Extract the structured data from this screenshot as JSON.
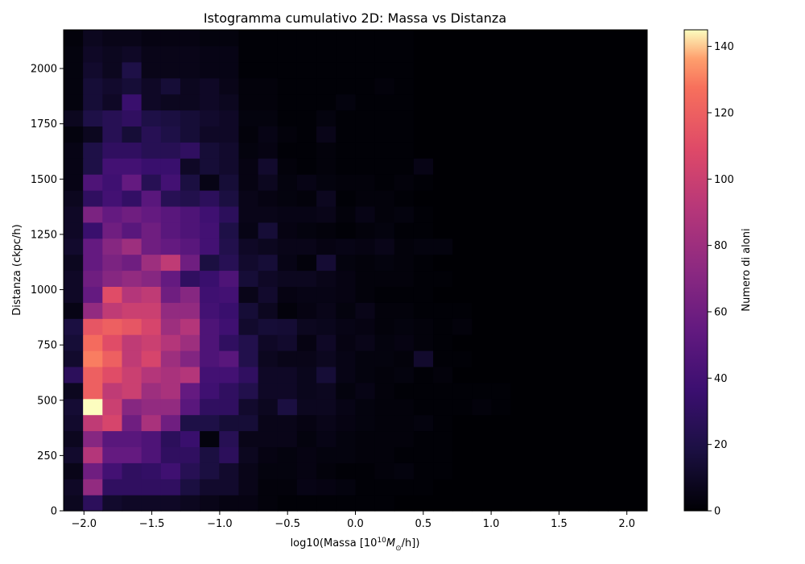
{
  "chart_data": {
    "type": "heatmap",
    "title": "Istogramma cumulativo 2D: Massa vs Distanza",
    "xlabel": "log10(Massa [10",
    "xlabel_exp": "10",
    "xlabel_rest": "M",
    "xlabel_sub": "⊙",
    "xlabel_tail": "/h])",
    "ylabel": "Distanza (ckpc/h)",
    "colorbar_label": "Numero di aloni",
    "colormap": "magma",
    "xlim": [
      -2.15,
      2.15
    ],
    "ylim": [
      0,
      2175
    ],
    "clim": [
      0,
      145
    ],
    "x_ticks": [
      -2.0,
      -1.5,
      -1.0,
      -0.5,
      0.0,
      0.5,
      1.0,
      1.5,
      2.0
    ],
    "x_tick_labels": [
      "−2.0",
      "−1.5",
      "−1.0",
      "−0.5",
      "0.0",
      "0.5",
      "1.0",
      "1.5",
      "2.0"
    ],
    "y_ticks": [
      0,
      250,
      500,
      750,
      1000,
      1250,
      1500,
      1750,
      2000
    ],
    "y_tick_labels": [
      "0",
      "250",
      "500",
      "750",
      "1000",
      "1250",
      "1500",
      "1750",
      "2000"
    ],
    "cbar_ticks": [
      0,
      20,
      40,
      60,
      80,
      100,
      120,
      140
    ],
    "cbar_tick_labels": [
      "0",
      "20",
      "40",
      "60",
      "80",
      "100",
      "120",
      "140"
    ],
    "x_bin_edges_start": -2.15,
    "x_bin_width": 0.1433,
    "y_bin_edges_start": 0,
    "y_bin_width": 72.5,
    "counts_rows_bottom_to_top": [
      [
        8,
        28,
        12,
        10,
        10,
        10,
        8,
        6,
        4,
        4,
        2,
        1,
        1,
        1,
        1,
        1,
        1,
        0,
        0,
        0,
        0,
        0,
        0,
        0,
        0,
        0,
        0,
        0,
        0,
        0
      ],
      [
        10,
        75,
        30,
        30,
        30,
        30,
        18,
        12,
        12,
        6,
        2,
        2,
        5,
        4,
        3,
        1,
        1,
        1,
        1,
        0,
        0,
        0,
        0,
        0,
        0,
        0,
        0,
        0,
        0,
        0
      ],
      [
        6,
        60,
        40,
        30,
        32,
        38,
        25,
        18,
        12,
        6,
        3,
        3,
        4,
        2,
        1,
        1,
        2,
        3,
        1,
        1,
        0,
        0,
        0,
        0,
        0,
        0,
        0,
        0,
        0,
        0
      ],
      [
        12,
        90,
        55,
        55,
        45,
        30,
        30,
        18,
        28,
        8,
        4,
        3,
        4,
        3,
        3,
        2,
        2,
        1,
        1,
        1,
        0,
        0,
        0,
        0,
        0,
        0,
        0,
        0,
        0,
        0
      ],
      [
        8,
        70,
        50,
        50,
        45,
        28,
        35,
        3,
        25,
        6,
        6,
        6,
        3,
        5,
        3,
        2,
        2,
        2,
        1,
        1,
        0,
        0,
        0,
        0,
        0,
        0,
        0,
        0,
        0,
        0
      ],
      [
        12,
        95,
        105,
        60,
        85,
        60,
        20,
        20,
        15,
        15,
        6,
        6,
        4,
        6,
        4,
        3,
        2,
        2,
        3,
        1,
        0,
        0,
        0,
        0,
        0,
        0,
        0,
        0,
        0,
        0
      ],
      [
        14,
        145,
        100,
        70,
        75,
        75,
        50,
        30,
        30,
        12,
        8,
        18,
        8,
        8,
        5,
        3,
        2,
        2,
        1,
        1,
        1,
        2,
        1,
        0,
        0,
        0,
        0,
        0,
        0,
        0
      ],
      [
        8,
        120,
        95,
        100,
        80,
        85,
        55,
        38,
        30,
        22,
        10,
        10,
        7,
        8,
        3,
        5,
        2,
        1,
        1,
        1,
        1,
        1,
        1,
        0,
        0,
        0,
        0,
        0,
        0,
        0
      ],
      [
        28,
        120,
        110,
        100,
        90,
        85,
        90,
        40,
        40,
        30,
        10,
        10,
        7,
        15,
        5,
        3,
        2,
        3,
        1,
        2,
        0,
        0,
        0,
        0,
        0,
        0,
        0,
        0,
        0,
        0
      ],
      [
        12,
        130,
        120,
        95,
        105,
        80,
        68,
        45,
        50,
        22,
        8,
        6,
        6,
        8,
        5,
        3,
        3,
        2,
        12,
        1,
        1,
        0,
        0,
        0,
        0,
        0,
        0,
        0,
        0,
        0
      ],
      [
        15,
        125,
        110,
        95,
        100,
        90,
        80,
        45,
        30,
        22,
        10,
        12,
        4,
        10,
        4,
        6,
        3,
        4,
        2,
        1,
        0,
        0,
        0,
        0,
        0,
        0,
        0,
        0,
        0,
        0
      ],
      [
        18,
        115,
        120,
        115,
        105,
        80,
        90,
        45,
        38,
        12,
        15,
        14,
        8,
        7,
        5,
        4,
        2,
        3,
        2,
        1,
        2,
        0,
        0,
        0,
        0,
        0,
        0,
        0,
        0,
        0
      ],
      [
        5,
        75,
        95,
        100,
        100,
        75,
        75,
        40,
        35,
        15,
        8,
        2,
        4,
        6,
        3,
        6,
        2,
        2,
        1,
        1,
        1,
        0,
        0,
        0,
        0,
        0,
        0,
        0,
        0,
        0
      ],
      [
        10,
        55,
        110,
        90,
        95,
        60,
        70,
        38,
        40,
        6,
        12,
        4,
        5,
        5,
        4,
        2,
        1,
        1,
        1,
        0,
        0,
        0,
        0,
        0,
        0,
        0,
        0,
        0,
        0,
        0
      ],
      [
        10,
        60,
        70,
        75,
        70,
        55,
        30,
        35,
        45,
        15,
        10,
        8,
        8,
        6,
        4,
        2,
        2,
        2,
        1,
        1,
        0,
        0,
        0,
        0,
        0,
        0,
        0,
        0,
        0,
        0
      ],
      [
        8,
        55,
        65,
        60,
        80,
        95,
        60,
        18,
        25,
        12,
        15,
        5,
        2,
        14,
        3,
        2,
        3,
        2,
        1,
        0,
        0,
        0,
        0,
        0,
        0,
        0,
        0,
        0,
        0,
        0
      ],
      [
        12,
        55,
        70,
        80,
        60,
        55,
        50,
        40,
        22,
        10,
        8,
        6,
        6,
        4,
        5,
        4,
        6,
        2,
        3,
        3,
        0,
        0,
        0,
        0,
        0,
        0,
        0,
        0,
        0,
        0
      ],
      [
        10,
        35,
        60,
        50,
        60,
        50,
        45,
        40,
        20,
        5,
        15,
        4,
        3,
        2,
        1,
        2,
        3,
        1,
        1,
        0,
        0,
        0,
        0,
        0,
        0,
        0,
        0,
        0,
        0,
        0
      ],
      [
        10,
        65,
        55,
        60,
        55,
        50,
        45,
        38,
        28,
        6,
        6,
        5,
        5,
        6,
        2,
        5,
        2,
        3,
        1,
        0,
        0,
        0,
        0,
        0,
        0,
        0,
        0,
        0,
        0,
        0
      ],
      [
        8,
        30,
        40,
        32,
        50,
        25,
        22,
        28,
        18,
        6,
        4,
        3,
        2,
        8,
        1,
        2,
        2,
        1,
        0,
        0,
        0,
        0,
        0,
        0,
        0,
        0,
        0,
        0,
        0,
        0
      ],
      [
        5,
        45,
        38,
        55,
        25,
        40,
        18,
        5,
        15,
        4,
        8,
        3,
        5,
        3,
        2,
        2,
        1,
        2,
        1,
        0,
        0,
        0,
        0,
        0,
        0,
        0,
        0,
        0,
        0,
        0
      ],
      [
        5,
        20,
        40,
        40,
        35,
        35,
        10,
        15,
        12,
        4,
        12,
        2,
        1,
        2,
        1,
        1,
        1,
        1,
        5,
        0,
        0,
        0,
        0,
        0,
        0,
        0,
        0,
        0,
        0,
        0
      ],
      [
        5,
        20,
        30,
        30,
        25,
        25,
        30,
        15,
        12,
        3,
        4,
        1,
        1,
        2,
        1,
        1,
        1,
        1,
        0,
        0,
        0,
        0,
        0,
        0,
        0,
        0,
        0,
        0,
        0,
        0
      ],
      [
        3,
        8,
        25,
        15,
        25,
        20,
        15,
        10,
        10,
        2,
        5,
        2,
        1,
        6,
        1,
        1,
        1,
        1,
        0,
        0,
        0,
        0,
        0,
        0,
        0,
        0,
        0,
        0,
        0,
        0
      ],
      [
        8,
        20,
        25,
        30,
        20,
        18,
        15,
        12,
        10,
        3,
        3,
        1,
        1,
        3,
        1,
        1,
        1,
        1,
        0,
        0,
        0,
        0,
        0,
        0,
        0,
        0,
        0,
        0,
        0,
        0
      ],
      [
        3,
        15,
        10,
        35,
        10,
        8,
        8,
        10,
        8,
        2,
        2,
        1,
        1,
        1,
        3,
        1,
        1,
        1,
        0,
        0,
        0,
        0,
        0,
        0,
        0,
        0,
        0,
        0,
        0,
        0
      ],
      [
        3,
        15,
        12,
        15,
        10,
        15,
        8,
        10,
        6,
        2,
        2,
        1,
        1,
        1,
        1,
        1,
        2,
        1,
        0,
        0,
        0,
        0,
        0,
        0,
        0,
        0,
        0,
        0,
        0,
        0
      ],
      [
        3,
        12,
        8,
        20,
        6,
        6,
        6,
        5,
        5,
        1,
        1,
        1,
        1,
        1,
        1,
        1,
        1,
        1,
        0,
        0,
        0,
        0,
        0,
        0,
        0,
        0,
        0,
        0,
        0,
        0
      ],
      [
        3,
        10,
        8,
        10,
        6,
        6,
        6,
        5,
        5,
        1,
        1,
        1,
        1,
        1,
        1,
        1,
        1,
        1,
        0,
        0,
        0,
        0,
        0,
        0,
        0,
        0,
        0,
        0,
        0,
        0
      ],
      [
        2,
        8,
        6,
        6,
        4,
        4,
        4,
        3,
        3,
        1,
        1,
        1,
        1,
        1,
        1,
        1,
        1,
        1,
        0,
        0,
        0,
        0,
        0,
        0,
        0,
        0,
        0,
        0,
        0,
        0
      ]
    ]
  }
}
